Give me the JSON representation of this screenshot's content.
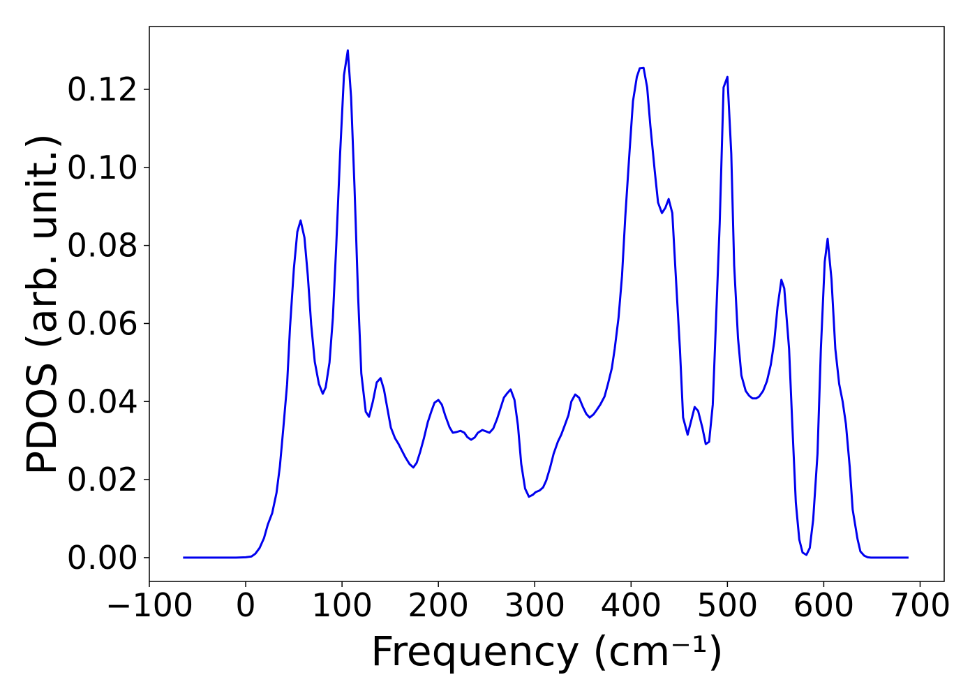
{
  "chart_data": {
    "type": "line",
    "xlabel": "Frequency (cm⁻¹)",
    "ylabel": "PDOS (arb. unit.)",
    "xlim": [
      -100,
      725
    ],
    "ylim": [
      -0.0061,
      0.1361
    ],
    "xticks": [
      {
        "value": -100,
        "label": "−100"
      },
      0,
      100,
      200,
      300,
      400,
      500,
      600,
      700
    ],
    "yticks": [
      {
        "value": 0,
        "label": "0.00"
      },
      {
        "value": 0.02,
        "label": "0.02"
      },
      {
        "value": 0.04,
        "label": "0.04"
      },
      {
        "value": 0.06,
        "label": "0.06"
      },
      {
        "value": 0.08,
        "label": "0.08"
      },
      {
        "value": 0.1,
        "label": "0.10"
      },
      {
        "value": 0.12,
        "label": "0.12"
      }
    ],
    "series": [
      {
        "color": "#0000ee",
        "x": [
          -65,
          -40,
          -20,
          -10,
          0,
          6,
          10,
          14.5,
          19,
          23,
          27.5,
          32,
          35.5,
          39,
          43,
          46,
          50,
          53.6,
          57,
          61,
          64.5,
          68,
          71.7,
          76,
          80,
          83,
          87,
          90.5,
          94,
          98,
          102,
          106,
          109.4,
          113,
          116.7,
          120,
          124.6,
          128,
          132,
          136,
          140,
          143.5,
          147,
          150.7,
          155,
          158.7,
          162,
          166,
          170,
          174,
          177.5,
          181,
          185,
          189,
          193,
          196,
          200,
          203.6,
          207,
          211.6,
          215,
          219,
          223,
          227,
          230,
          234,
          237.7,
          241,
          245.6,
          249,
          253,
          257,
          261,
          264.5,
          268,
          271.7,
          275,
          279,
          282.6,
          286,
          290,
          294,
          298,
          301,
          305,
          308.7,
          312,
          316,
          319.6,
          324,
          327.5,
          331,
          335,
          338,
          342,
          346,
          350,
          353.6,
          357,
          361,
          364.5,
          368,
          372.5,
          376,
          380,
          383,
          387,
          390.6,
          394,
          398.5,
          402,
          406,
          409,
          413,
          416.7,
          420,
          424.6,
          428,
          432,
          435.5,
          439,
          442.8,
          446,
          450.7,
          454,
          458.7,
          462,
          466,
          469.6,
          474,
          477.5,
          481,
          484.8,
          488,
          492,
          496,
          500,
          504,
          507,
          511,
          514.5,
          519,
          522.5,
          526,
          530,
          533,
          537,
          541,
          545,
          548.6,
          552,
          556,
          559,
          564,
          567.4,
          571,
          574.6,
          578,
          582,
          585.5,
          589,
          593.5,
          597,
          601,
          604,
          608,
          612,
          616,
          619.6,
          623,
          627,
          630,
          635,
          638,
          642,
          645.6,
          649,
          670,
          688
        ],
        "values": [
          0,
          0,
          0,
          0,
          0.0001,
          0.0003,
          0.001,
          0.0025,
          0.005,
          0.0085,
          0.0114,
          0.0166,
          0.0234,
          0.033,
          0.0445,
          0.059,
          0.074,
          0.0835,
          0.0864,
          0.082,
          0.0722,
          0.0597,
          0.0502,
          0.0445,
          0.042,
          0.0436,
          0.05,
          0.0615,
          0.08,
          0.1035,
          0.1236,
          0.13,
          0.118,
          0.0946,
          0.0669,
          0.0472,
          0.0374,
          0.0361,
          0.04,
          0.0449,
          0.046,
          0.0431,
          0.0383,
          0.0333,
          0.0306,
          0.0291,
          0.0275,
          0.0256,
          0.024,
          0.0231,
          0.0243,
          0.027,
          0.0306,
          0.0347,
          0.0377,
          0.0397,
          0.0404,
          0.0392,
          0.0365,
          0.0334,
          0.032,
          0.0322,
          0.0325,
          0.032,
          0.0309,
          0.0302,
          0.0308,
          0.032,
          0.0327,
          0.0324,
          0.032,
          0.0331,
          0.0356,
          0.0383,
          0.041,
          0.0422,
          0.0431,
          0.0404,
          0.0338,
          0.024,
          0.0177,
          0.0156,
          0.0161,
          0.0168,
          0.0172,
          0.018,
          0.0198,
          0.0231,
          0.0266,
          0.0297,
          0.0315,
          0.0338,
          0.0365,
          0.04,
          0.0418,
          0.041,
          0.0386,
          0.0368,
          0.0359,
          0.0367,
          0.0379,
          0.0392,
          0.0413,
          0.0445,
          0.0485,
          0.0535,
          0.0615,
          0.0722,
          0.0874,
          0.1044,
          0.117,
          0.1232,
          0.1254,
          0.1255,
          0.1205,
          0.1107,
          0.099,
          0.091,
          0.0883,
          0.0896,
          0.0919,
          0.0883,
          0.074,
          0.0535,
          0.0359,
          0.0315,
          0.0347,
          0.0386,
          0.0376,
          0.0333,
          0.0291,
          0.0297,
          0.0392,
          0.0597,
          0.0857,
          0.1205,
          0.1232,
          0.1035,
          0.0749,
          0.0562,
          0.0467,
          0.0427,
          0.0415,
          0.0408,
          0.0408,
          0.0413,
          0.0427,
          0.0452,
          0.0494,
          0.0553,
          0.0642,
          0.0712,
          0.069,
          0.0535,
          0.0338,
          0.0141,
          0.0046,
          0.0013,
          0.0007,
          0.0025,
          0.0097,
          0.0266,
          0.0535,
          0.0758,
          0.0817,
          0.0714,
          0.0535,
          0.0445,
          0.04,
          0.0342,
          0.0231,
          0.0123,
          0.0048,
          0.0016,
          0.0005,
          0.0001,
          0,
          0,
          0
        ]
      }
    ]
  }
}
